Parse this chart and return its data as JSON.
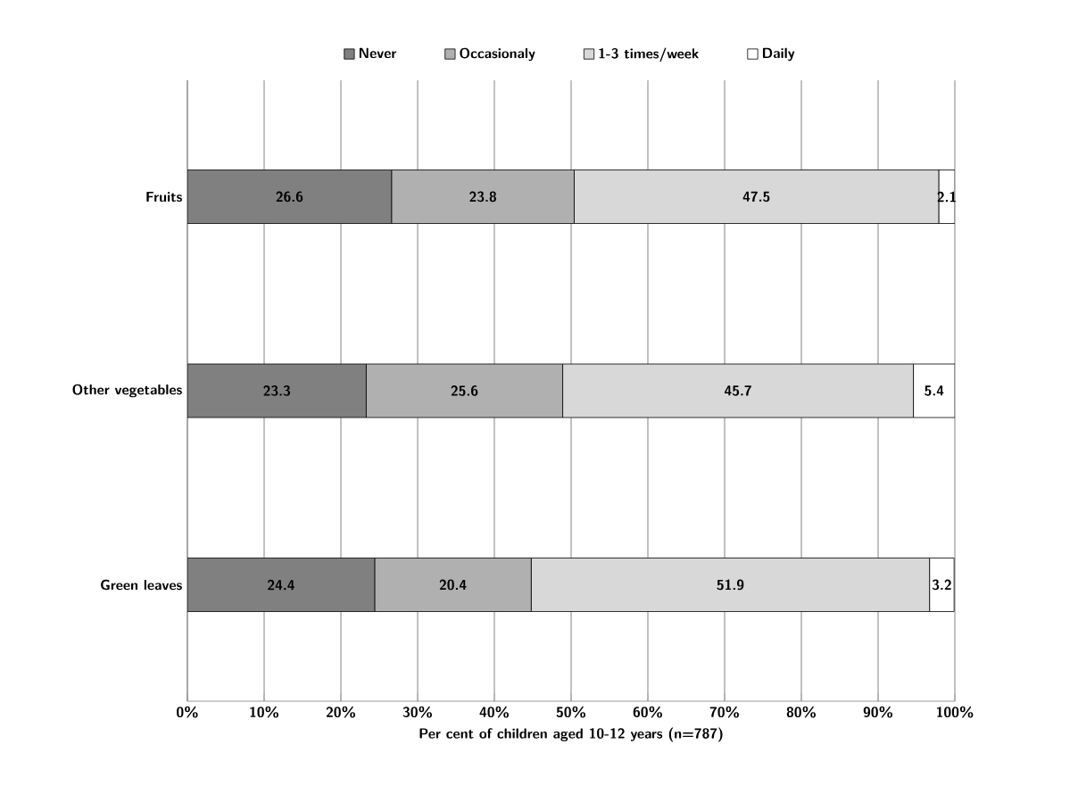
{
  "chart_data": {
    "type": "bar",
    "orientation": "horizontal",
    "stacked": true,
    "xlabel": "Per cent of children aged 10-12 years (n=787)",
    "categories": [
      "Fruits",
      "Other vegetables",
      "Green leaves"
    ],
    "series": [
      {
        "name": "Never",
        "color": "#808080",
        "values": [
          26.6,
          23.3,
          24.4
        ]
      },
      {
        "name": "Occasionaly",
        "color": "#b0b0b0",
        "values": [
          23.8,
          25.6,
          20.4
        ]
      },
      {
        "name": "1-3 times/week",
        "color": "#d8d8d8",
        "values": [
          47.5,
          45.7,
          51.9
        ]
      },
      {
        "name": "Daily",
        "color": "#ffffff",
        "values": [
          2.1,
          5.4,
          3.2
        ]
      }
    ],
    "xlim": [
      0,
      100
    ],
    "xticks": [
      {
        "value": 0,
        "label": "0%"
      },
      {
        "value": 10,
        "label": "10%"
      },
      {
        "value": 20,
        "label": "20%"
      },
      {
        "value": 30,
        "label": "30%"
      },
      {
        "value": 40,
        "label": "40%"
      },
      {
        "value": 50,
        "label": "50%"
      },
      {
        "value": 60,
        "label": "60%"
      },
      {
        "value": 70,
        "label": "70%"
      },
      {
        "value": 80,
        "label": "80%"
      },
      {
        "value": 90,
        "label": "90%"
      },
      {
        "value": 100,
        "label": "100%"
      }
    ],
    "grid": "x",
    "legend": "top",
    "data_labels": true
  }
}
